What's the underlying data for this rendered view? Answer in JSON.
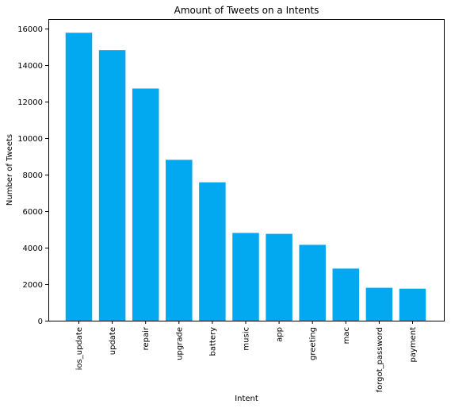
{
  "chart_data": {
    "type": "bar",
    "title": "Amount of Tweets on a Intents",
    "xlabel": "Intent",
    "ylabel": "Number of Tweets",
    "categories": [
      "ios_update",
      "update",
      "repair",
      "upgrade",
      "battery",
      "music",
      "app",
      "greeting",
      "mac",
      "forgot_password",
      "payment"
    ],
    "values": [
      15750,
      14800,
      12700,
      8800,
      7570,
      4800,
      4750,
      4150,
      2850,
      1800,
      1750
    ],
    "ylim": [
      0,
      16500
    ],
    "yticks": [
      0,
      2000,
      4000,
      6000,
      8000,
      10000,
      12000,
      14000,
      16000
    ],
    "ytick_labels": [
      "0",
      "2000",
      "4000",
      "6000",
      "8000",
      "10000",
      "12000",
      "14000",
      "16000"
    ],
    "grid": false,
    "bar_color": "#03a9f0"
  }
}
